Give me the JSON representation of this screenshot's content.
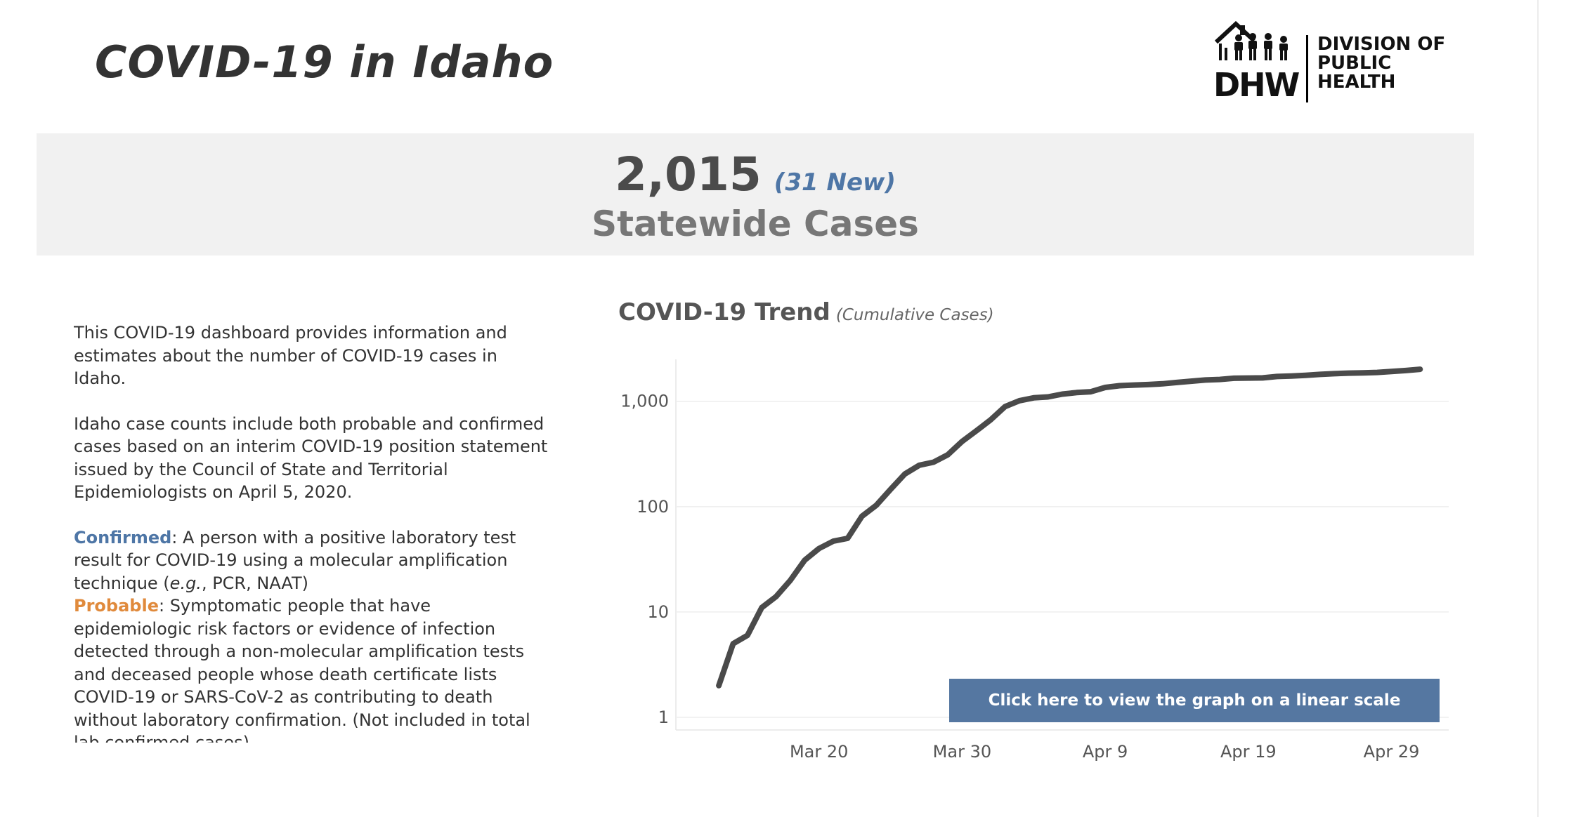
{
  "header": {
    "title": "COVID-19 in Idaho",
    "logo": {
      "abbrev": "DHW",
      "lines": [
        "DIVISION OF",
        "PUBLIC",
        "HEALTH"
      ]
    }
  },
  "summary": {
    "total": "2,015",
    "new": "(31 New)",
    "label": "Statewide Cases"
  },
  "description": {
    "intro": "This COVID-19 dashboard provides information and estimates about the number of COVID-19 cases in Idaho.",
    "counts": "Idaho case counts include both probable and confirmed cases based on an interim COVID-19 position statement issued by the Council of State and Territorial Epidemiologists on April 5, 2020.",
    "confirmed_term": "Confirmed",
    "confirmed_text_before": ": A person with a positive laboratory test result for COVID-19 using a molecular amplification technique (",
    "confirmed_eg": "e.g.",
    "confirmed_text_after": ", PCR, NAAT)",
    "probable_term": "Probable",
    "probable_text": ": Symptomatic people that have epidemiologic risk factors or evidence of infection detected through a non-molecular amplification tests and deceased people whose death certificate lists  COVID-19 or SARS-CoV-2 as contributing to death without laboratory confirmation. (Not included in total lab confirmed cases)"
  },
  "chart_title": {
    "main": "COVID-19 Trend",
    "sub": "(Cumulative Cases)"
  },
  "button": {
    "label": "Click here to view the graph on a linear scale"
  },
  "colors": {
    "accent_blue": "#4e76a6",
    "probable_orange": "#e08a3c",
    "line": "#4a4a4a",
    "banner_bg": "#f1f1f1",
    "button_bg": "#5577a1"
  },
  "chart_data": {
    "type": "line",
    "title": "COVID-19 Trend",
    "subtitle": "(Cumulative Cases)",
    "yscale": "log",
    "ylim": [
      1,
      2500
    ],
    "yticks": [
      1,
      10,
      100,
      1000
    ],
    "ytick_labels": [
      "1",
      "10",
      "100",
      "1,000"
    ],
    "xlim": [
      "2020-03-10",
      "2020-05-03"
    ],
    "xticks": [
      "2020-03-20",
      "2020-03-30",
      "2020-04-09",
      "2020-04-19",
      "2020-04-29"
    ],
    "xtick_labels": [
      "Mar 20",
      "Mar 30",
      "Apr 9",
      "Apr 19",
      "Apr 29"
    ],
    "grid": true,
    "series": [
      {
        "x": [
          "2020-03-13",
          "2020-03-14",
          "2020-03-15",
          "2020-03-16",
          "2020-03-17",
          "2020-03-18",
          "2020-03-19",
          "2020-03-20",
          "2020-03-21",
          "2020-03-22",
          "2020-03-23",
          "2020-03-24",
          "2020-03-25",
          "2020-03-26",
          "2020-03-27",
          "2020-03-28",
          "2020-03-29",
          "2020-03-30",
          "2020-03-31",
          "2020-04-01",
          "2020-04-02",
          "2020-04-03",
          "2020-04-04",
          "2020-04-05",
          "2020-04-06",
          "2020-04-07",
          "2020-04-08",
          "2020-04-09",
          "2020-04-10",
          "2020-04-11",
          "2020-04-12",
          "2020-04-13",
          "2020-04-14",
          "2020-04-15",
          "2020-04-16",
          "2020-04-17",
          "2020-04-18",
          "2020-04-19",
          "2020-04-20",
          "2020-04-21",
          "2020-04-22",
          "2020-04-23",
          "2020-04-24",
          "2020-04-25",
          "2020-04-26",
          "2020-04-27",
          "2020-04-28",
          "2020-04-29",
          "2020-04-30",
          "2020-05-01"
        ],
        "y": [
          2,
          5,
          6,
          11,
          14,
          20,
          31,
          40,
          47,
          50,
          81,
          103,
          146,
          204,
          247,
          264,
          311,
          416,
          525,
          667,
          891,
          1012,
          1078,
          1101,
          1170,
          1210,
          1232,
          1353,
          1407,
          1426,
          1442,
          1466,
          1509,
          1551,
          1593,
          1612,
          1655,
          1663,
          1668,
          1719,
          1737,
          1766,
          1801,
          1828,
          1850,
          1863,
          1878,
          1916,
          1959,
          2015
        ]
      }
    ]
  }
}
